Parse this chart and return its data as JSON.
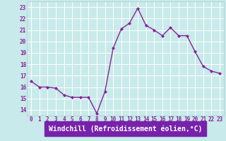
{
  "x": [
    0,
    1,
    2,
    3,
    4,
    5,
    6,
    7,
    8,
    9,
    10,
    11,
    12,
    13,
    14,
    15,
    16,
    17,
    18,
    19,
    20,
    21,
    22,
    23
  ],
  "y": [
    16.5,
    16.0,
    16.0,
    15.9,
    15.3,
    15.1,
    15.1,
    15.1,
    13.7,
    15.6,
    19.4,
    21.1,
    21.6,
    22.9,
    21.4,
    21.0,
    20.5,
    21.2,
    20.5,
    20.5,
    19.1,
    17.8,
    17.4,
    17.2
  ],
  "line_color": "#882299",
  "marker": "D",
  "marker_size": 2.0,
  "linewidth": 1.0,
  "bg_color": "#c8eaea",
  "grid_color": "#b0d8d8",
  "xlabel": "Windchill (Refroidissement éolien,°C)",
  "xlabel_bg": "#7722aa",
  "xlabel_fg": "#ffffff",
  "ylim": [
    13.5,
    23.5
  ],
  "xlim": [
    -0.5,
    23.5
  ],
  "yticks": [
    14,
    15,
    16,
    17,
    18,
    19,
    20,
    21,
    22,
    23
  ],
  "xticks": [
    0,
    1,
    2,
    3,
    4,
    5,
    6,
    7,
    8,
    9,
    10,
    11,
    12,
    13,
    14,
    15,
    16,
    17,
    18,
    19,
    20,
    21,
    22,
    23
  ],
  "tick_color": "#882299",
  "tick_labelsize": 5.5,
  "xlabel_fontsize": 7.0,
  "spine_color": "#aacccc"
}
